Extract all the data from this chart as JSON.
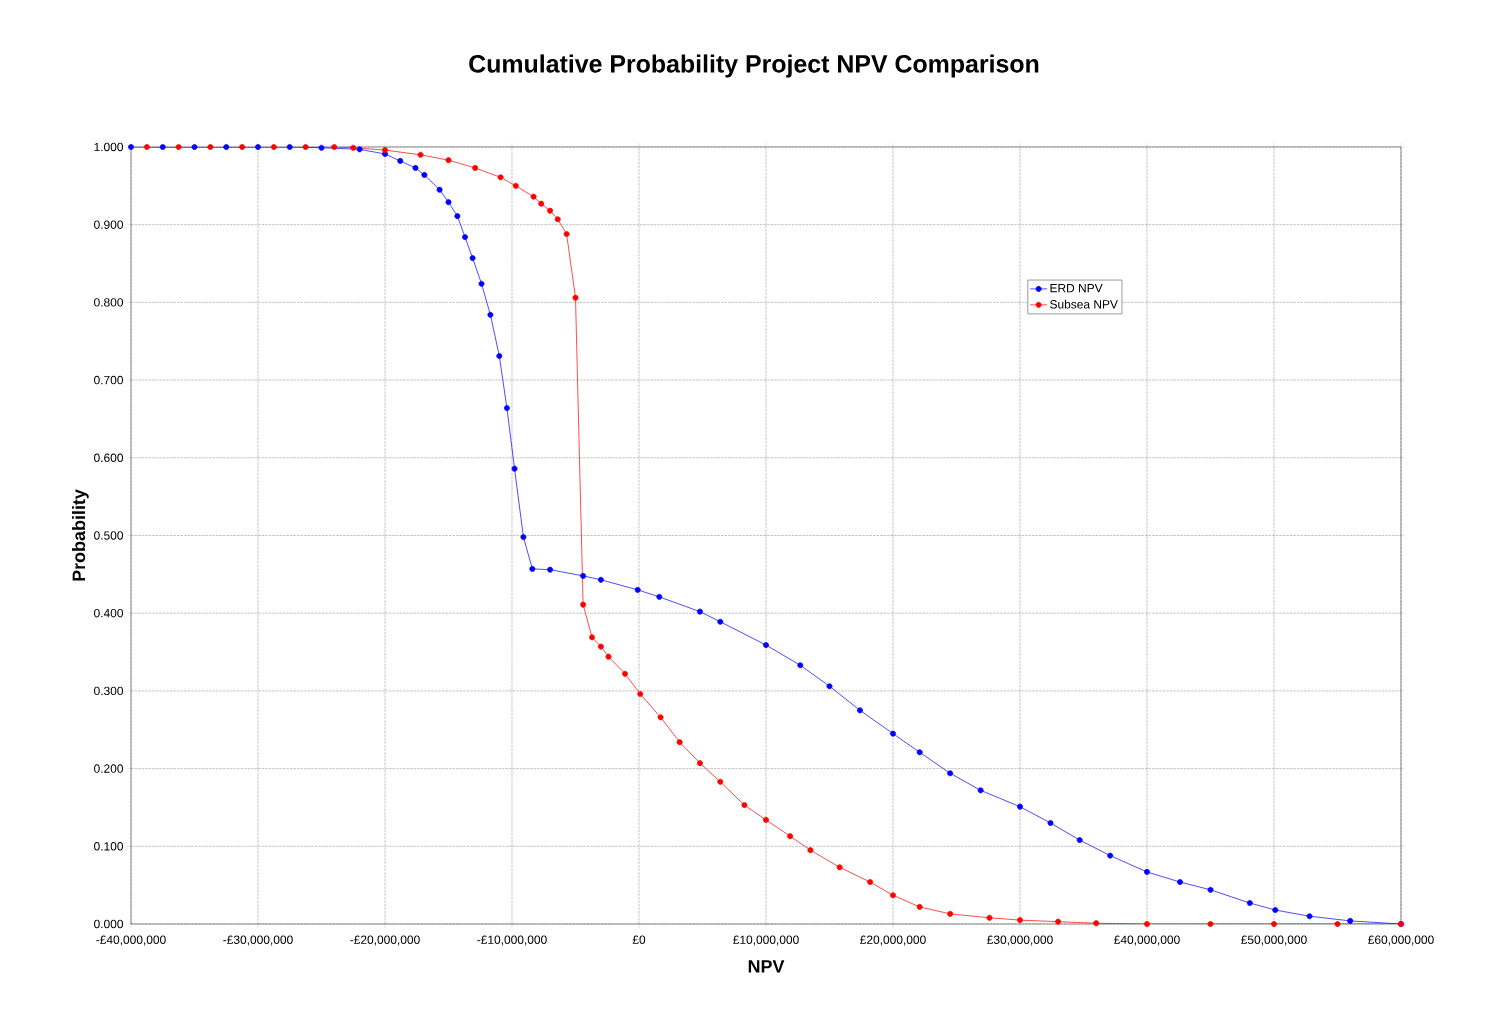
{
  "chart_data": {
    "type": "line",
    "title": "Cumulative Probability Project NPV Comparison",
    "xlabel": "NPV",
    "ylabel": "Probability",
    "xlim": [
      -40000000,
      60000000
    ],
    "ylim": [
      0,
      1
    ],
    "xticks": [
      {
        "value": -40000000,
        "label": "-£40,000,000"
      },
      {
        "value": -30000000,
        "label": "-£30,000,000"
      },
      {
        "value": -20000000,
        "label": "-£20,000,000"
      },
      {
        "value": -10000000,
        "label": "-£10,000,000"
      },
      {
        "value": 0,
        "label": "£0"
      },
      {
        "value": 10000000,
        "label": "£10,000,000"
      },
      {
        "value": 20000000,
        "label": "£20,000,000"
      },
      {
        "value": 30000000,
        "label": "£30,000,000"
      },
      {
        "value": 40000000,
        "label": "£40,000,000"
      },
      {
        "value": 50000000,
        "label": "£50,000,000"
      },
      {
        "value": 60000000,
        "label": "£60,000,000"
      }
    ],
    "yticks": [
      {
        "value": 0,
        "label": "0.000"
      },
      {
        "value": 0.1,
        "label": "0.100"
      },
      {
        "value": 0.2,
        "label": "0.200"
      },
      {
        "value": 0.3,
        "label": "0.300"
      },
      {
        "value": 0.4,
        "label": "0.400"
      },
      {
        "value": 0.5,
        "label": "0.500"
      },
      {
        "value": 0.6,
        "label": "0.600"
      },
      {
        "value": 0.7,
        "label": "0.700"
      },
      {
        "value": 0.8,
        "label": "0.800"
      },
      {
        "value": 0.9,
        "label": "0.900"
      },
      {
        "value": 1,
        "label": "1.000"
      }
    ],
    "grid": true,
    "legend": "top right",
    "marker": "circle",
    "line_style": "solid",
    "series": [
      {
        "name": "ERD NPV",
        "color": "#0000ff",
        "x": [
          -40000000,
          -37500000,
          -35000000,
          -32500000,
          -30000000,
          -27500000,
          -25000000,
          -22000000,
          -20000000,
          -18800000,
          -17600000,
          -16900000,
          -15700000,
          -15000000,
          -14300000,
          -13700000,
          -13100000,
          -12400000,
          -11700000,
          -11000000,
          -10400000,
          -9800000,
          -9100000,
          -8400000,
          -7000000,
          -4400000,
          -3000000,
          -100000,
          1600000,
          4800000,
          6400000,
          10000000,
          12700000,
          15000000,
          17400000,
          20000000,
          22100000,
          24500000,
          26900000,
          30000000,
          32400000,
          34700000,
          37100000,
          40000000,
          42600000,
          45000000,
          48100000,
          50100000,
          52800000,
          56000000,
          60000000
        ],
        "values": [
          1.0,
          1.0,
          1.0,
          1.0,
          1.0,
          1.0,
          0.999,
          0.997,
          0.991,
          0.982,
          0.973,
          0.964,
          0.945,
          0.929,
          0.911,
          0.884,
          0.857,
          0.824,
          0.784,
          0.731,
          0.664,
          0.586,
          0.498,
          0.457,
          0.456,
          0.448,
          0.443,
          0.43,
          0.421,
          0.402,
          0.389,
          0.359,
          0.333,
          0.306,
          0.275,
          0.245,
          0.221,
          0.194,
          0.172,
          0.151,
          0.13,
          0.108,
          0.088,
          0.067,
          0.054,
          0.044,
          0.027,
          0.018,
          0.01,
          0.004,
          0.0
        ]
      },
      {
        "name": "Subsea NPV",
        "color": "#ff0000",
        "x": [
          -38750000,
          -36250000,
          -33750000,
          -31250000,
          -28750000,
          -26250000,
          -24000000,
          -22500000,
          -20000000,
          -17200000,
          -15000000,
          -12900000,
          -10900000,
          -9700000,
          -8300000,
          -7700000,
          -7000000,
          -6400000,
          -5700000,
          -5000000,
          -4400000,
          -3700000,
          -3000000,
          -2400000,
          -1100000,
          100000,
          1700000,
          3200000,
          4800000,
          6400000,
          8300000,
          10000000,
          11900000,
          13500000,
          15800000,
          18200000,
          20000000,
          22100000,
          24500000,
          27600000,
          30000000,
          33000000,
          36000000,
          40000000,
          45000000,
          50000000,
          55000000,
          60000000
        ],
        "values": [
          1.0,
          1.0,
          1.0,
          1.0,
          1.0,
          1.0,
          1.0,
          0.999,
          0.996,
          0.99,
          0.983,
          0.973,
          0.961,
          0.95,
          0.936,
          0.927,
          0.918,
          0.907,
          0.888,
          0.806,
          0.411,
          0.369,
          0.357,
          0.344,
          0.322,
          0.296,
          0.266,
          0.234,
          0.207,
          0.183,
          0.153,
          0.134,
          0.113,
          0.095,
          0.073,
          0.054,
          0.037,
          0.022,
          0.013,
          0.008,
          0.005,
          0.003,
          0.001,
          0.0,
          0.0,
          0.0,
          0.0,
          0.0
        ]
      }
    ]
  }
}
